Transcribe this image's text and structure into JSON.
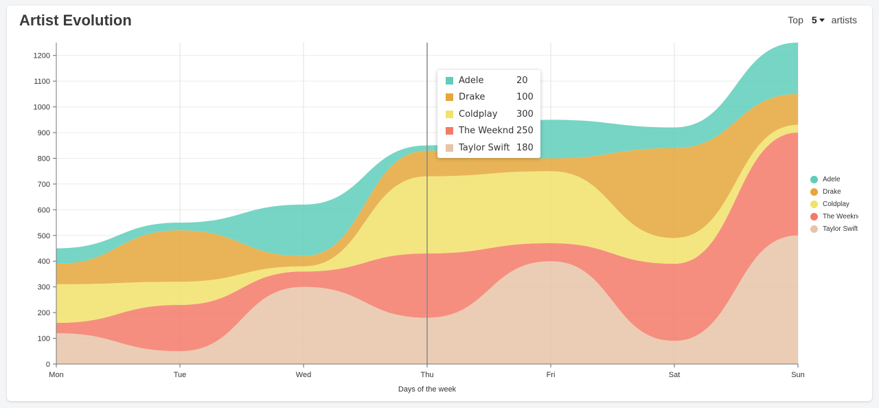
{
  "header": {
    "title": "Artist Evolution",
    "top_prefix": "Top",
    "top_value": "5",
    "top_suffix": "artists"
  },
  "tooltip": {
    "day": "Thu",
    "rows": [
      {
        "name": "Adele",
        "value": "20",
        "color": "#5ecebb"
      },
      {
        "name": "Drake",
        "value": "100",
        "color": "#e5a73a"
      },
      {
        "name": "Coldplay",
        "value": "300",
        "color": "#f1e26a"
      },
      {
        "name": "The Weeknd",
        "value": "250",
        "color": "#f47a68"
      },
      {
        "name": "Taylor Swift",
        "value": "180",
        "color": "#e8c4a8"
      }
    ]
  },
  "chart_data": {
    "type": "area",
    "stacked": true,
    "xlabel": "Days of the week",
    "ylabel": "",
    "categories": [
      "Mon",
      "Tue",
      "Wed",
      "Thu",
      "Fri",
      "Sat",
      "Sun"
    ],
    "ylim": [
      0,
      1250
    ],
    "yticks": [
      0,
      100,
      200,
      300,
      400,
      500,
      600,
      700,
      800,
      900,
      1000,
      1100,
      1200
    ],
    "grid": "vertical-and-horizontal",
    "legend_position": "right",
    "series": [
      {
        "name": "Taylor Swift",
        "color": "#e8c4a8",
        "values": [
          120,
          50,
          300,
          180,
          400,
          90,
          500
        ]
      },
      {
        "name": "The Weeknd",
        "color": "#f47a68",
        "values": [
          40,
          180,
          60,
          250,
          70,
          300,
          400
        ]
      },
      {
        "name": "Coldplay",
        "color": "#f1e26a",
        "values": [
          150,
          90,
          20,
          300,
          280,
          100,
          30
        ]
      },
      {
        "name": "Drake",
        "color": "#e5a73a",
        "values": [
          80,
          200,
          40,
          100,
          50,
          350,
          120
        ]
      },
      {
        "name": "Adele",
        "color": "#5ecebb",
        "values": [
          60,
          30,
          200,
          20,
          150,
          80,
          200
        ]
      }
    ],
    "legend": [
      "Adele",
      "Drake",
      "Coldplay",
      "The Weeknd",
      "Taylor Swift"
    ],
    "hover_category": "Thu"
  }
}
